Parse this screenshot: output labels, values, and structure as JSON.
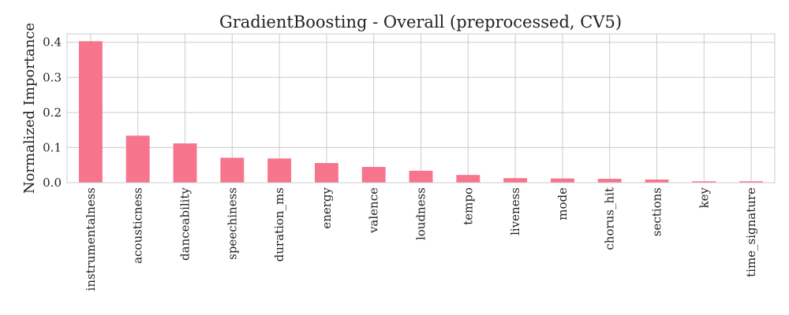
{
  "chart_data": {
    "type": "bar",
    "title": "GradientBoosting - Overall (preprocessed, CV5)",
    "xlabel": "",
    "ylabel": "Normalized Importance",
    "categories": [
      "instrumentalness",
      "acousticness",
      "danceability",
      "speechiness",
      "duration_ms",
      "energy",
      "valence",
      "loudness",
      "tempo",
      "liveness",
      "mode",
      "chorus_hit",
      "sections",
      "key",
      "time_signature"
    ],
    "values": [
      0.403,
      0.134,
      0.112,
      0.071,
      0.069,
      0.056,
      0.045,
      0.034,
      0.022,
      0.013,
      0.012,
      0.011,
      0.009,
      0.004,
      0.004
    ],
    "ylim": [
      0,
      0.424
    ],
    "yticks": [
      "0.0",
      "0.1",
      "0.2",
      "0.3",
      "0.4"
    ],
    "grid": true,
    "bar_color": "#f7748d"
  }
}
